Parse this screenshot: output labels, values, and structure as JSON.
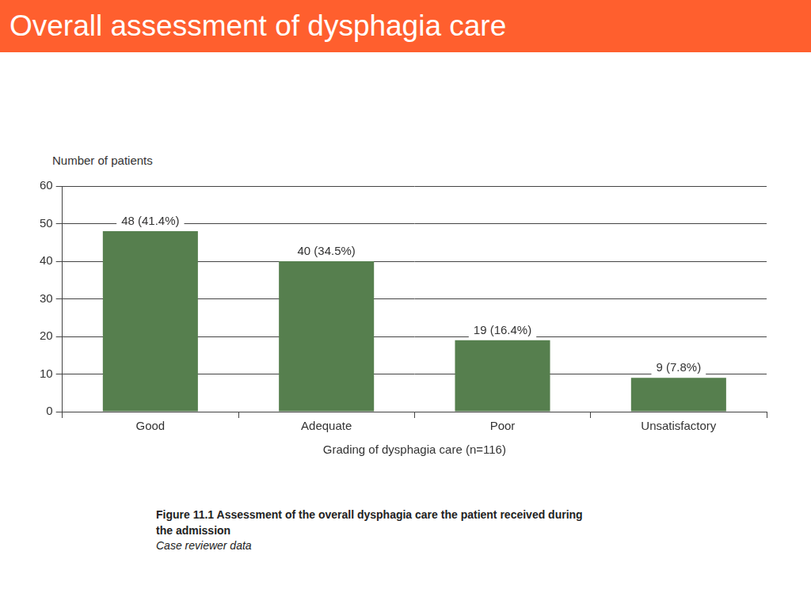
{
  "page_title": "Overall assessment of dysphagia care",
  "chart_data": {
    "type": "bar",
    "y_label": "Number of patients",
    "x_label": "Grading of dysphagia care (n=116)",
    "categories": [
      "Good",
      "Adequate",
      "Poor",
      "Unsatisfactory"
    ],
    "values": [
      48,
      40,
      19,
      9
    ],
    "value_labels": [
      "48 (41.4%)",
      "40 (34.5%)",
      "19 (16.4%)",
      "9 (7.8%)"
    ],
    "data_labels": true,
    "color": "#567f4e",
    "ylim": [
      0,
      60
    ],
    "yticks": [
      0,
      10,
      20,
      30,
      40,
      50,
      60
    ],
    "grid": true
  },
  "caption": {
    "title": "Figure 11.1 Assessment of the overall dysphagia care the patient received during the admission",
    "source": "Case reviewer data"
  }
}
